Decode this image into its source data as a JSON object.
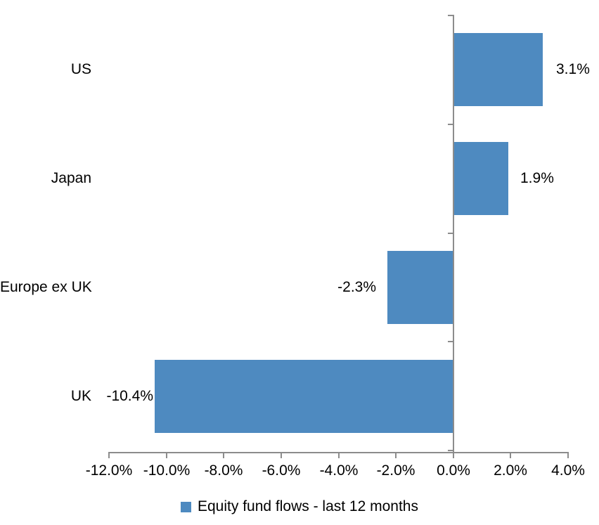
{
  "chart_data": {
    "type": "bar",
    "orientation": "horizontal",
    "title": "",
    "xlabel": "",
    "ylabel": "",
    "categories": [
      "US",
      "Japan",
      "Europe ex UK",
      "UK"
    ],
    "series": [
      {
        "name": "Equity fund flows - last 12 months",
        "values": [
          3.1,
          1.9,
          -2.3,
          -10.4
        ],
        "data_labels": [
          "3.1%",
          "1.9%",
          "-2.3%",
          "-10.4%"
        ]
      }
    ],
    "xlim": [
      -12,
      4
    ],
    "x_ticks": [
      {
        "value": -12,
        "label": "-12.0%"
      },
      {
        "value": -10,
        "label": "-10.0%"
      },
      {
        "value": -8,
        "label": "-8.0%"
      },
      {
        "value": -6,
        "label": "-6.0%"
      },
      {
        "value": -4,
        "label": "-4.0%"
      },
      {
        "value": -2,
        "label": "-2.0%"
      },
      {
        "value": 0,
        "label": "0.0%"
      },
      {
        "value": 2,
        "label": "2.0%"
      },
      {
        "value": 4,
        "label": "4.0%"
      }
    ],
    "grid": false,
    "legend_position": "bottom",
    "legend_label": "Equity fund flows - last 12 months"
  },
  "colors": {
    "bar": "#4e8ac0",
    "axis": "#8c8c8c",
    "text": "#000000",
    "background": "#ffffff"
  }
}
